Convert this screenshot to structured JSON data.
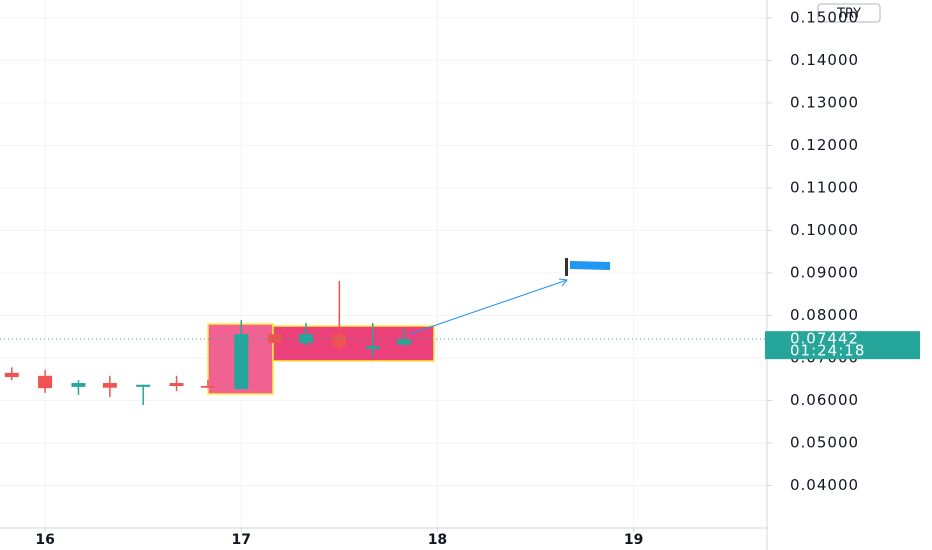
{
  "chart_data": {
    "type": "candlestick",
    "currency": "TRY",
    "x": [
      15.83,
      16.0,
      16.17,
      16.33,
      16.5,
      16.67,
      16.83,
      17.0,
      17.17,
      17.33,
      17.5,
      17.67,
      17.83
    ],
    "open": [
      0.0665,
      0.0658,
      0.0632,
      0.0641,
      0.0632,
      0.0641,
      0.0634,
      0.0627,
      0.0756,
      0.0735,
      0.0756,
      0.0721,
      0.0731
    ],
    "high": [
      0.0678,
      0.0672,
      0.0648,
      0.0658,
      0.0637,
      0.0658,
      0.0648,
      0.0789,
      0.0762,
      0.0782,
      0.0881,
      0.0782,
      0.0768
    ],
    "low": [
      0.0648,
      0.0618,
      0.0613,
      0.0608,
      0.0589,
      0.0622,
      0.063,
      0.0627,
      0.0731,
      0.0728,
      0.0714,
      0.0702,
      0.0731
    ],
    "close": [
      0.0655,
      0.0629,
      0.0641,
      0.063,
      0.0637,
      0.0634,
      0.063,
      0.0756,
      0.0735,
      0.0756,
      0.0726,
      0.0728,
      0.0744
    ],
    "up_color": "#26a69a",
    "down_color": "#ef5350",
    "last_price": 0.07442,
    "countdown": "01:24:18",
    "last_price_color": "#26a69a",
    "xlim": [
      15.77,
      19.68
    ],
    "xticks": [
      16,
      17,
      18,
      19
    ],
    "ylim": [
      0.03,
      0.1542
    ],
    "yticks": [
      {
        "value": 0.04,
        "label": "0.04000"
      },
      {
        "value": 0.05,
        "label": "0.05000"
      },
      {
        "value": 0.06,
        "label": "0.06000"
      },
      {
        "value": 0.07,
        "label": "0.07000"
      },
      {
        "value": 0.08,
        "label": "0.08000"
      },
      {
        "value": 0.09,
        "label": "0.09000"
      },
      {
        "value": 0.1,
        "label": "0.10000"
      },
      {
        "value": 0.11,
        "label": "0.11000"
      },
      {
        "value": 0.12,
        "label": "0.12000"
      },
      {
        "value": 0.13,
        "label": "0.13000"
      },
      {
        "value": 0.14,
        "label": "0.14000"
      },
      {
        "value": 0.15,
        "label": "0.15000"
      }
    ],
    "grid": true
  }
}
